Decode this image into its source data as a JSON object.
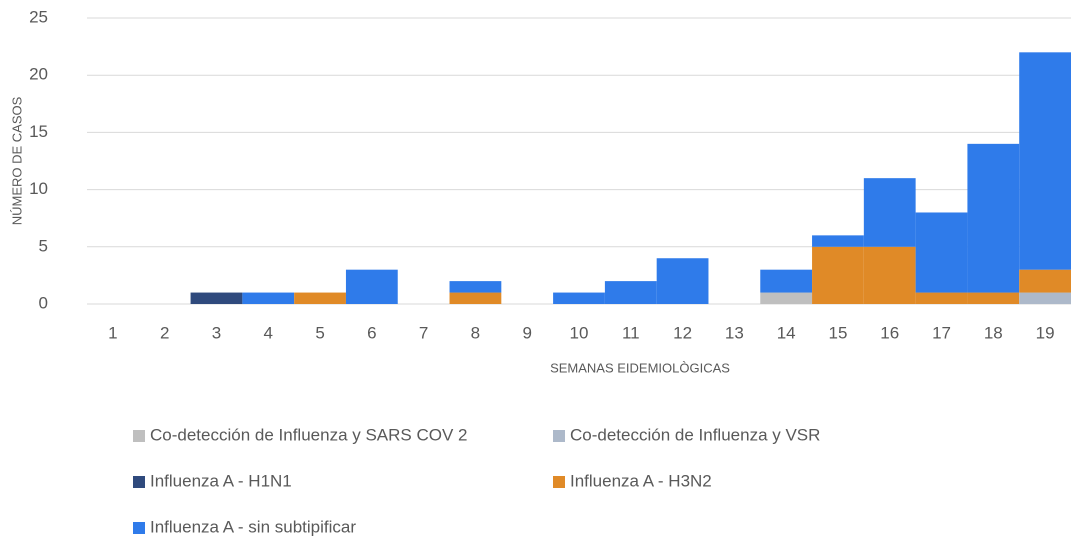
{
  "chart_data": {
    "type": "stacked-bar",
    "x_label": "SEMANAS EIDEMIOLÒGICAS",
    "y_label": "NÚMERO DE CASOS",
    "categories": [
      "1",
      "2",
      "3",
      "4",
      "5",
      "6",
      "7",
      "8",
      "9",
      "10",
      "11",
      "12",
      "13",
      "14",
      "15",
      "16",
      "17",
      "18",
      "19"
    ],
    "series": [
      {
        "name": "Co-detección de Influenza y SARS COV 2",
        "color": "#bfbfbf",
        "values": [
          0,
          0,
          0,
          0,
          0,
          0,
          0,
          0,
          0,
          0,
          0,
          0,
          0,
          1,
          0,
          0,
          0,
          0,
          0
        ]
      },
      {
        "name": "Co-detección de Influenza y VSR",
        "color": "#adb9ca",
        "values": [
          0,
          0,
          0,
          0,
          0,
          0,
          0,
          0,
          0,
          0,
          0,
          0,
          0,
          0,
          0,
          0,
          0,
          0,
          1
        ]
      },
      {
        "name": "Influenza A - H1N1",
        "color": "#2f4a7d",
        "values": [
          0,
          0,
          1,
          0,
          0,
          0,
          0,
          0,
          0,
          0,
          0,
          0,
          0,
          0,
          0,
          0,
          0,
          0,
          0
        ]
      },
      {
        "name": "Influenza A - H3N2",
        "color": "#e08a27",
        "values": [
          0,
          0,
          0,
          0,
          1,
          0,
          0,
          1,
          0,
          0,
          0,
          0,
          0,
          0,
          5,
          5,
          1,
          1,
          2
        ]
      },
      {
        "name": "Influenza A - sin subtipificar",
        "color": "#2f7bea",
        "values": [
          0,
          0,
          0,
          1,
          0,
          3,
          0,
          1,
          0,
          1,
          2,
          4,
          0,
          2,
          1,
          6,
          7,
          13,
          19
        ]
      }
    ],
    "ylim": [
      0,
      25
    ],
    "yticks": [
      0,
      5,
      10,
      15,
      20,
      25
    ],
    "grid": true
  }
}
